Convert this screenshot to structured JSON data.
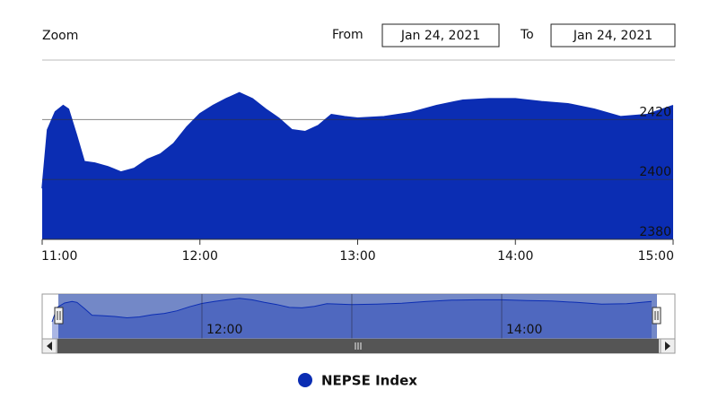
{
  "ui": {
    "zoom_label": "Zoom",
    "from_label": "From",
    "from_date": "Jan 24, 2021",
    "to_label": "To",
    "to_date": "Jan 24, 2021"
  },
  "chart_data": {
    "type": "area",
    "x": [
      "11:00",
      "11:02",
      "11:05",
      "11:08",
      "11:10",
      "11:13",
      "11:16",
      "11:20",
      "11:25",
      "11:30",
      "11:35",
      "11:40",
      "11:45",
      "11:50",
      "11:55",
      "12:00",
      "12:05",
      "12:10",
      "12:15",
      "12:20",
      "12:25",
      "12:30",
      "12:35",
      "12:40",
      "12:45",
      "12:50",
      "12:55",
      "13:00",
      "13:10",
      "13:20",
      "13:30",
      "13:40",
      "13:50",
      "14:00",
      "14:10",
      "14:20",
      "14:30",
      "14:40",
      "14:50",
      "15:00"
    ],
    "series": [
      {
        "name": "NEPSE Index",
        "color": "#0b2db3",
        "values": [
          2397,
          2416.6,
          2422.6,
          2424.7,
          2423.5,
          2415,
          2406,
          2405.5,
          2404.3,
          2402.5,
          2403.7,
          2406.7,
          2408.5,
          2412,
          2417.5,
          2422,
          2424.7,
          2427,
          2429,
          2427,
          2423.5,
          2420.5,
          2416.6,
          2416,
          2418,
          2421.7,
          2421,
          2420.5,
          2421,
          2422.3,
          2424.7,
          2426.5,
          2427,
          2427,
          2426,
          2425.3,
          2423.5,
          2421,
          2421.7,
          2424.7
        ]
      }
    ],
    "xlim": [
      "11:00",
      "15:00"
    ],
    "xticks": [
      "11:00",
      "12:00",
      "13:00",
      "14:00",
      "15:00"
    ],
    "ylim": [
      2380,
      2436
    ],
    "yticks": [
      2380,
      2400,
      2420
    ],
    "grid": true
  }
}
